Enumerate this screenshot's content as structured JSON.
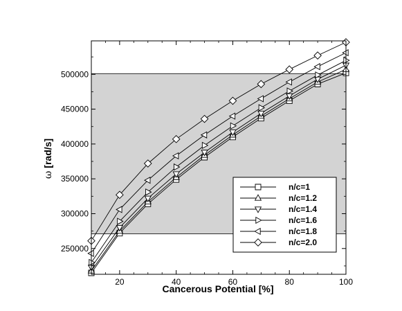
{
  "chart_data": {
    "type": "line",
    "title": "",
    "xlabel": "Cancerous Potential [%]",
    "ylabel_symbol": "ω",
    "ylabel_unit": "[rad/s]",
    "xlim": [
      10,
      100
    ],
    "ylim": [
      213000,
      548000
    ],
    "x_ticks": [
      20,
      40,
      60,
      80,
      100
    ],
    "y_ticks": [
      250000,
      300000,
      350000,
      400000,
      450000,
      500000
    ],
    "shaded_band": [
      271000,
      501000
    ],
    "legend_position": "lower-right",
    "grid": false,
    "x": [
      10,
      20,
      30,
      40,
      50,
      60,
      70,
      80,
      90,
      100
    ],
    "series": [
      {
        "name": "n/c=1",
        "marker": "square",
        "values": [
          215000,
          272000,
          314000,
          349000,
          381000,
          410000,
          437000,
          462000,
          486000,
          502000
        ]
      },
      {
        "name": "n/c=1.2",
        "marker": "triangle-up",
        "values": [
          218000,
          275000,
          317000,
          352000,
          384000,
          413000,
          440000,
          465000,
          489000,
          507000
        ]
      },
      {
        "name": "n/c=1.4",
        "marker": "triangle-down",
        "values": [
          223000,
          280000,
          322000,
          357000,
          388000,
          417000,
          444000,
          469000,
          493000,
          513000
        ]
      },
      {
        "name": "n/c=1.6",
        "marker": "triangle-right",
        "values": [
          230000,
          289000,
          331000,
          367000,
          398000,
          426000,
          452000,
          476000,
          499000,
          520000
        ]
      },
      {
        "name": "n/c=1.8",
        "marker": "triangle-left",
        "values": [
          243000,
          306000,
          348000,
          383000,
          413000,
          440000,
          465000,
          489000,
          511000,
          531000
        ]
      },
      {
        "name": "n/c=2.0",
        "marker": "diamond",
        "values": [
          261000,
          327000,
          372000,
          407000,
          436000,
          462000,
          486000,
          507000,
          527000,
          546000
        ]
      }
    ]
  }
}
